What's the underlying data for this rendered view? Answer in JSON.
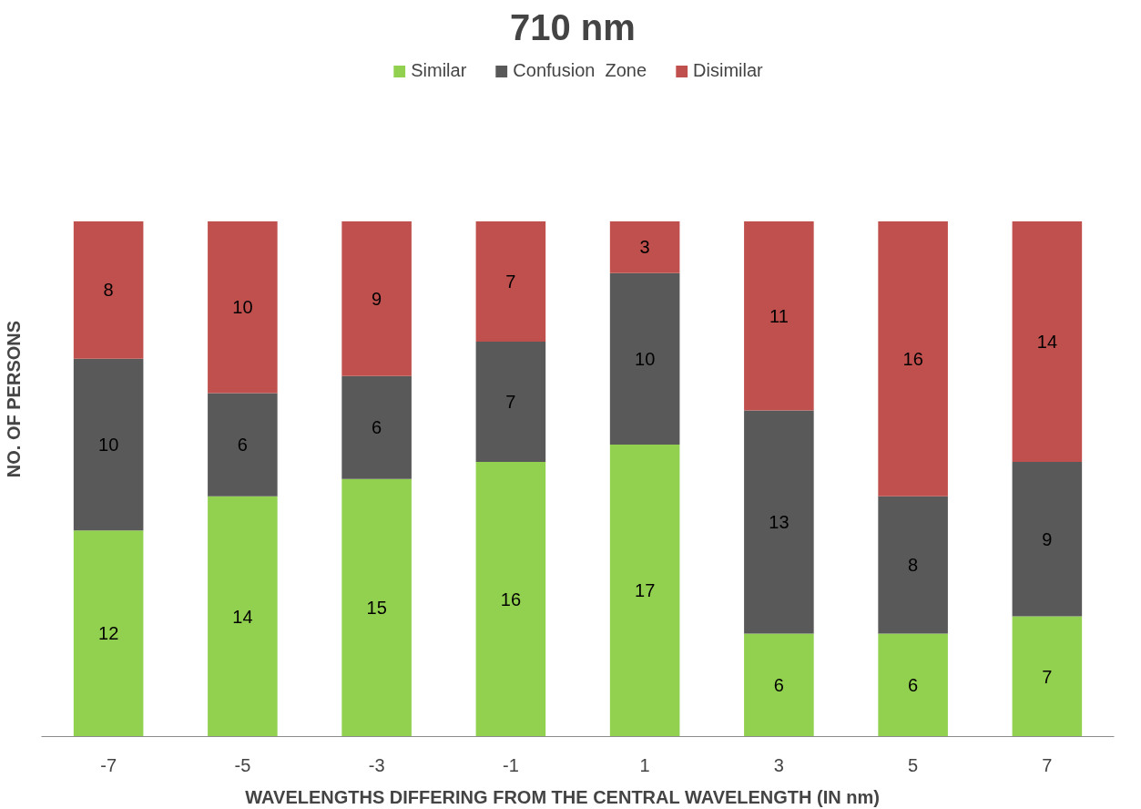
{
  "chart_data": {
    "type": "bar",
    "stacked": true,
    "title": "710  nm",
    "xlabel": "WAVELENGTHS  DIFFERING  FROM  THE  CENTRAL  WAVELENGTH (IN  nm)",
    "ylabel": "NO.  OF  PERSONS",
    "categories": [
      "-7",
      "-5",
      "-3",
      "-1",
      "1",
      "3",
      "5",
      "7"
    ],
    "series": [
      {
        "name": "Similar",
        "color": "#92d050",
        "values": [
          12,
          14,
          15,
          16,
          17,
          6,
          6,
          7
        ]
      },
      {
        "name": "Confusion  Zone",
        "color": "#595959",
        "values": [
          10,
          6,
          6,
          7,
          10,
          13,
          8,
          9
        ]
      },
      {
        "name": "Disimilar",
        "color": "#c0504d",
        "values": [
          8,
          10,
          9,
          7,
          3,
          11,
          16,
          14
        ]
      }
    ],
    "data_labels": true,
    "legend": "top",
    "grid": false
  }
}
